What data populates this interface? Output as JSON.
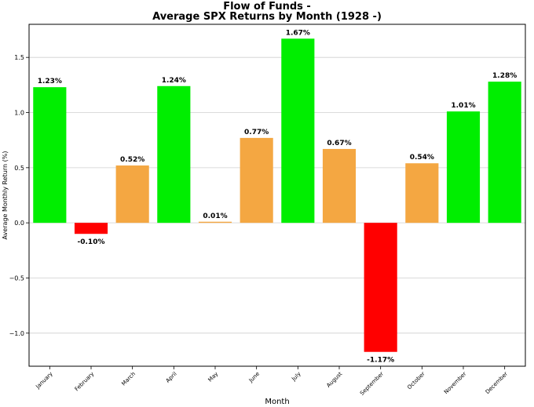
{
  "chart_data": {
    "type": "bar",
    "title_line1": "Flow of Funds -",
    "title_line2": "Average SPX Returns by Month (1928 -)",
    "xlabel": "Month",
    "ylabel": "Average Monthly Return (%)",
    "ylim": [
      -1.3,
      1.8
    ],
    "yticks": [
      -1.0,
      -0.5,
      0.0,
      0.5,
      1.0,
      1.5
    ],
    "ytick_labels": [
      "−1.0",
      "−0.5",
      "0.0",
      "0.5",
      "1.0",
      "1.5"
    ],
    "grid": true,
    "categories": [
      "January",
      "February",
      "March",
      "April",
      "May",
      "June",
      "July",
      "August",
      "September",
      "October",
      "November",
      "December"
    ],
    "values": [
      1.23,
      -0.1,
      0.52,
      1.24,
      0.01,
      0.77,
      1.67,
      0.67,
      -1.17,
      0.54,
      1.01,
      1.28
    ],
    "value_labels": [
      "1.23%",
      "-0.10%",
      "0.52%",
      "1.24%",
      "0.01%",
      "0.77%",
      "1.67%",
      "0.67%",
      "-1.17%",
      "0.54%",
      "1.01%",
      "1.28%"
    ],
    "colors": [
      "#00ee00",
      "#ff0000",
      "#f4a742",
      "#00ee00",
      "#f4a742",
      "#f4a742",
      "#00ee00",
      "#f4a742",
      "#ff0000",
      "#f4a742",
      "#00ee00",
      "#00ee00"
    ]
  }
}
